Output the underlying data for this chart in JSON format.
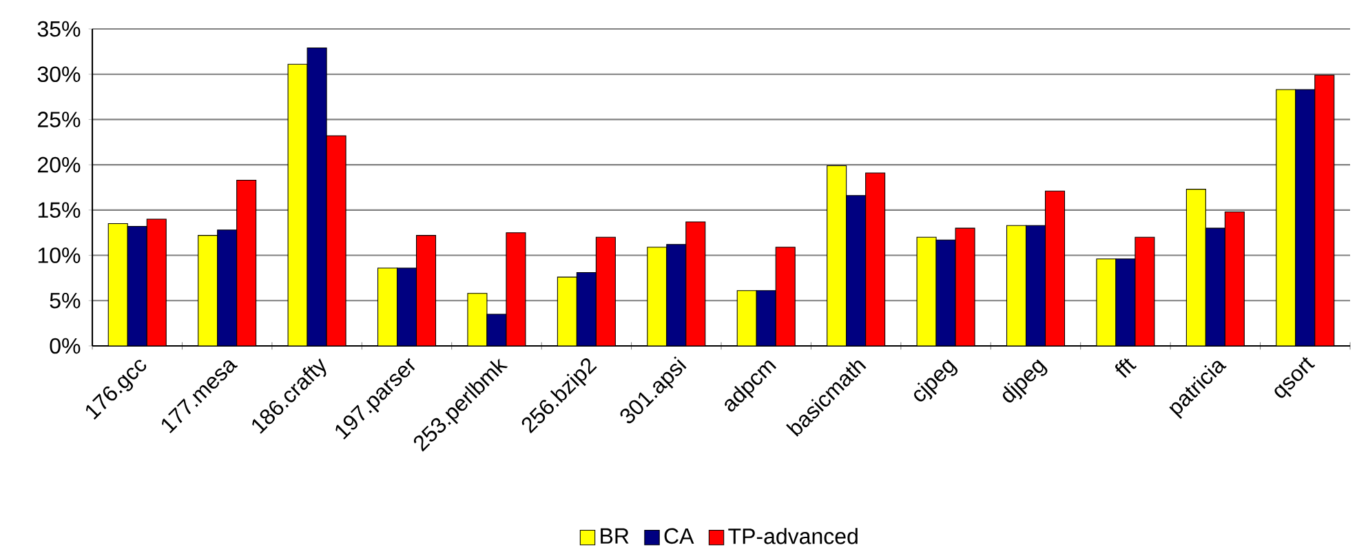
{
  "chart_data": {
    "type": "bar",
    "categories": [
      "176.gcc",
      "177.mesa",
      "186.crafty",
      "197.parser",
      "253.perlbmk",
      "256.bzip2",
      "301.apsi",
      "adpcm",
      "basicmath",
      "cjpeg",
      "djpeg",
      "fft",
      "patricia",
      "qsort"
    ],
    "series": [
      {
        "name": "BR",
        "color": "#ffff00",
        "values": [
          13.5,
          12.2,
          31.1,
          8.6,
          5.8,
          7.6,
          10.9,
          6.1,
          19.9,
          12.0,
          13.3,
          9.6,
          17.3,
          28.3
        ]
      },
      {
        "name": "CA",
        "color": "#000080",
        "values": [
          13.2,
          12.8,
          32.9,
          8.6,
          3.5,
          8.1,
          11.2,
          6.1,
          16.6,
          11.7,
          13.3,
          9.6,
          13.0,
          28.3
        ]
      },
      {
        "name": "TP-advanced",
        "color": "#ff0000",
        "values": [
          14.0,
          18.3,
          23.2,
          12.2,
          12.5,
          12.0,
          13.7,
          10.9,
          19.1,
          13.0,
          17.1,
          12.0,
          14.8,
          29.9
        ]
      }
    ],
    "ylim": [
      0,
      35
    ],
    "yticks": [
      {
        "value": 0,
        "label": "0%"
      },
      {
        "value": 5,
        "label": "5%"
      },
      {
        "value": 10,
        "label": "10%"
      },
      {
        "value": 15,
        "label": "15%"
      },
      {
        "value": 20,
        "label": "20%"
      },
      {
        "value": 25,
        "label": "25%"
      },
      {
        "value": 30,
        "label": "30%"
      },
      {
        "value": 35,
        "label": "35%"
      }
    ],
    "grid": "y",
    "legend": "bottom"
  }
}
